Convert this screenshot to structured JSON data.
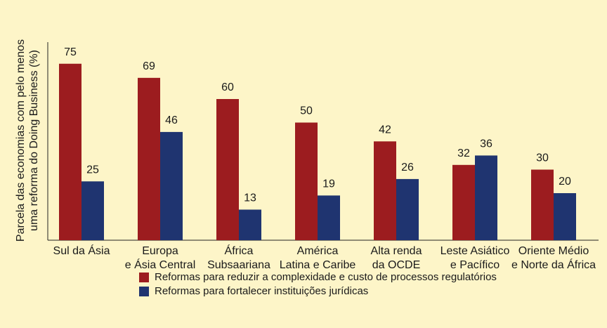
{
  "chart_data": {
    "type": "bar",
    "y_label": [
      "Parcela das economias com pelo menos",
      "uma reforma do Doing Business (%)"
    ],
    "categories": [
      [
        "Sul da Ásia"
      ],
      [
        "Europa",
        "e Ásia Central"
      ],
      [
        "África",
        "Subsaariana"
      ],
      [
        "América",
        "Latina e Caribe"
      ],
      [
        "Alta renda",
        "da OCDE"
      ],
      [
        "Leste Asiático",
        "e Pacífico"
      ],
      [
        "Oriente Médio",
        "e Norte da África"
      ]
    ],
    "series": [
      {
        "name": "Reformas para reduzir a complexidade e custo de processos regulatórios",
        "color": "#9c1c1f",
        "values": [
          75,
          69,
          60,
          50,
          42,
          32,
          30
        ]
      },
      {
        "name": "Reformas para fortalecer instituições jurídicas",
        "color": "#1f3470",
        "values": [
          25,
          46,
          13,
          19,
          26,
          36,
          20
        ]
      }
    ],
    "ylim": [
      0,
      80
    ]
  }
}
